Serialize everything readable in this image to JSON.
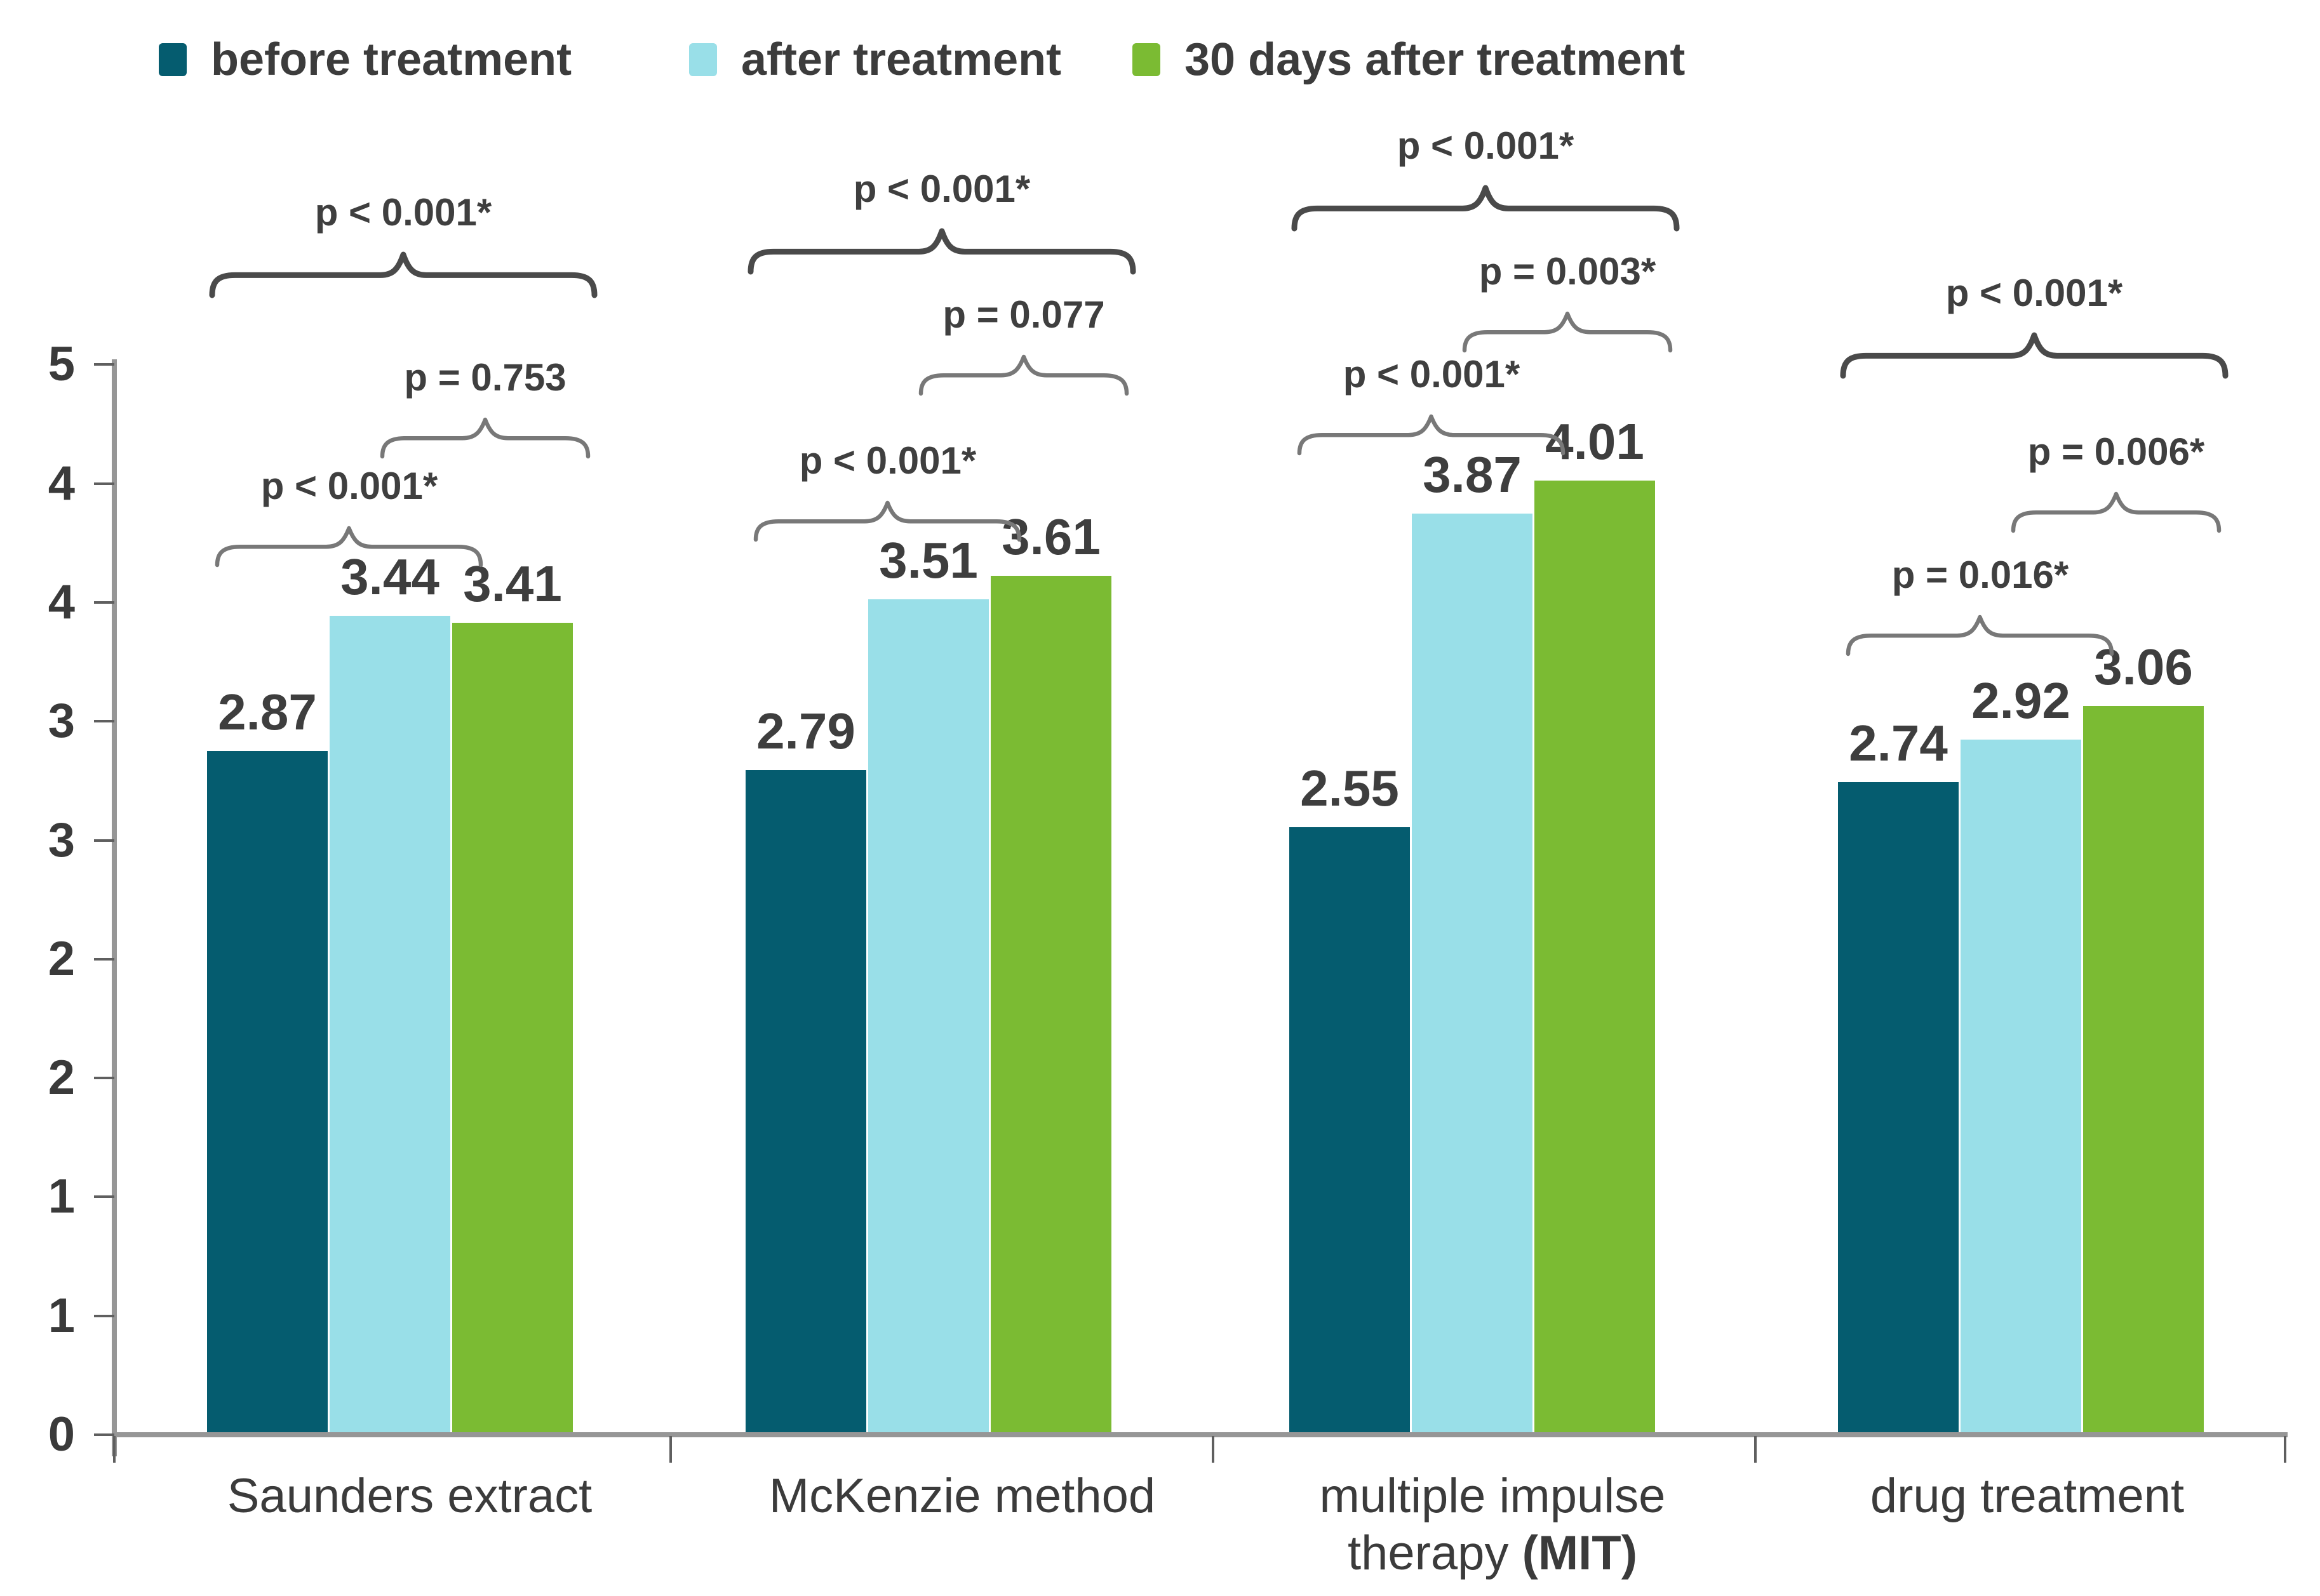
{
  "legend": {
    "items": [
      {
        "label": "before treatment",
        "color": "#055C6F"
      },
      {
        "label": "after treatment",
        "color": "#99DFE8"
      },
      {
        "label": "30 days after treatment",
        "color": "#7BBB33"
      }
    ]
  },
  "chart_data": {
    "type": "bar",
    "title": "",
    "xlabel": "",
    "ylabel": "",
    "grid": false,
    "legend_position": "top",
    "categories": [
      "Saunders extract",
      "McKenzie method",
      "multiple impulse therapy (MIT)",
      "drug treatment"
    ],
    "categories_display": [
      [
        [
          {
            "t": "Saunders extract",
            "b": false
          }
        ]
      ],
      [
        [
          {
            "t": "McKenzie method",
            "b": false
          }
        ]
      ],
      [
        [
          {
            "t": "multiple impulse",
            "b": false
          }
        ],
        [
          {
            "t": "therapy ",
            "b": false
          },
          {
            "t": "(MIT)",
            "b": true
          }
        ]
      ],
      [
        [
          {
            "t": "drug treatment",
            "b": false
          }
        ]
      ]
    ],
    "series": [
      {
        "name": "before treatment",
        "color": "#055C6F",
        "values": [
          2.87,
          2.79,
          2.55,
          2.74
        ]
      },
      {
        "name": "after treatment",
        "color": "#99DFE8",
        "values": [
          3.44,
          3.51,
          3.87,
          2.92
        ]
      },
      {
        "name": "30 days after treatment",
        "color": "#7BBB33",
        "values": [
          3.41,
          3.61,
          4.01,
          3.06
        ]
      }
    ],
    "value_labels": [
      [
        "2.87",
        "3.44",
        "3.41"
      ],
      [
        "2.79",
        "3.51",
        "3.61"
      ],
      [
        "2.55",
        "3.87",
        "4.01"
      ],
      [
        "2.74",
        "2.92",
        "3.06"
      ]
    ],
    "y_axis": {
      "tick_labels": [
        "5",
        "4",
        "4",
        "3",
        "3",
        "2",
        "2",
        "1",
        "1",
        "0"
      ],
      "ylim": [
        0,
        4.5
      ],
      "tick_step": 0.5,
      "note": "tick labels are rounded to whole numbers"
    },
    "annotations": [
      {
        "category": "Saunders extract",
        "comparisons": [
          {
            "position": "outer",
            "bars": [
              "before treatment",
              "30 days after treatment"
            ],
            "label": "p < 0.001*"
          },
          {
            "position": "inner-right",
            "bars": [
              "after treatment",
              "30 days after treatment"
            ],
            "label": "p = 0.753"
          },
          {
            "position": "inner-left",
            "bars": [
              "before treatment",
              "after treatment"
            ],
            "label": "p < 0.001*"
          }
        ]
      },
      {
        "category": "McKenzie method",
        "comparisons": [
          {
            "position": "outer",
            "bars": [
              "before treatment",
              "30 days after treatment"
            ],
            "label": "p < 0.001*"
          },
          {
            "position": "inner-right",
            "bars": [
              "after treatment",
              "30 days after treatment"
            ],
            "label": "p = 0.077"
          },
          {
            "position": "inner-left",
            "bars": [
              "before treatment",
              "after treatment"
            ],
            "label": "p < 0.001*"
          }
        ]
      },
      {
        "category": "multiple impulse therapy (MIT)",
        "comparisons": [
          {
            "position": "outer",
            "bars": [
              "before treatment",
              "30 days after treatment"
            ],
            "label": "p < 0.001*"
          },
          {
            "position": "inner-right",
            "bars": [
              "after treatment",
              "30 days after treatment"
            ],
            "label": "p = 0.003*"
          },
          {
            "position": "inner-left",
            "bars": [
              "before treatment",
              "after treatment"
            ],
            "label": "p < 0.001*"
          }
        ]
      },
      {
        "category": "drug treatment",
        "comparisons": [
          {
            "position": "outer",
            "bars": [
              "before treatment",
              "30 days after treatment"
            ],
            "label": "p < 0.001*"
          },
          {
            "position": "inner-right",
            "bars": [
              "after treatment",
              "30 days after treatment"
            ],
            "label": "p = 0.006*"
          },
          {
            "position": "inner-left",
            "bars": [
              "before treatment",
              "after treatment"
            ],
            "label": "p = 0.016*"
          }
        ]
      }
    ]
  }
}
